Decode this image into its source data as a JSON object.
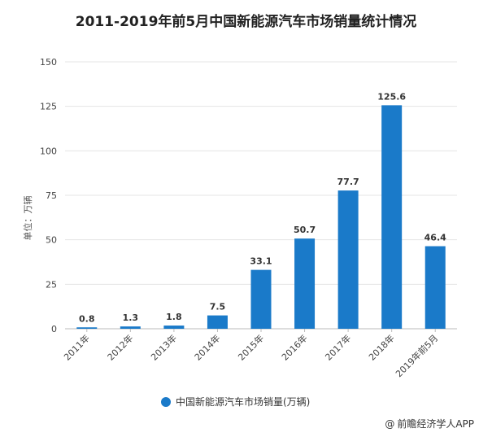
{
  "chart_data": {
    "type": "bar",
    "title": "2011-2019年前5月中国新能源汽车市场销量统计情况",
    "ylabel": "单位：万辆",
    "xlabel": "",
    "categories": [
      "2011年",
      "2012年",
      "2013年",
      "2014年",
      "2015年",
      "2016年",
      "2017年",
      "2018年",
      "2019年前5月"
    ],
    "series": [
      {
        "name": "中国新能源汽车市场销量(万辆)",
        "values": [
          0.8,
          1.3,
          1.8,
          7.5,
          33.1,
          50.7,
          77.7,
          125.6,
          46.4
        ]
      }
    ],
    "data_labels": [
      "0.8",
      "1.3",
      "1.8",
      "7.5",
      "33.1",
      "50.7",
      "77.7",
      "125.6",
      "46.4"
    ],
    "yticks": [
      "0",
      "25",
      "50",
      "75",
      "100",
      "125",
      "150"
    ],
    "ylim": [
      0,
      150
    ],
    "grid": true,
    "legend_position": "bottom",
    "bar_color": "#1a7ac9"
  },
  "source": {
    "copyright_symbol": "@",
    "text": "前瞻经济学人APP"
  }
}
